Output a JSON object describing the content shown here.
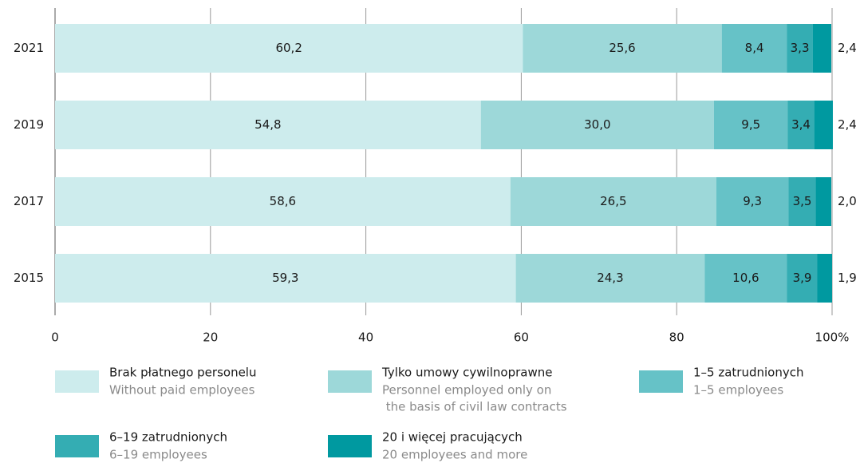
{
  "chart_data": {
    "type": "stacked_barh",
    "categories": [
      "2021",
      "2019",
      "2017",
      "2015"
    ],
    "series": [
      {
        "name": "Brak płatnego personelu",
        "name_en": [
          "Without paid employees"
        ],
        "color": "#cdeced",
        "label_color": "#1a1a1a",
        "values": [
          60.2,
          54.8,
          58.6,
          59.3
        ],
        "value_labels": [
          "60,2",
          "54,8",
          "58,6",
          "59,3"
        ]
      },
      {
        "name": "Tylko umowy cywilnoprawne",
        "name_en": [
          "Personnel employed only on",
          " the basis of civil law contracts"
        ],
        "color": "#9dd8d9",
        "label_color": "#1a1a1a",
        "values": [
          25.6,
          30.0,
          26.5,
          24.3
        ],
        "value_labels": [
          "25,6",
          "30,0",
          "26,5",
          "24,3"
        ]
      },
      {
        "name": "1–5 zatrudnionych",
        "name_en": [
          "1–5 employees"
        ],
        "color": "#66c2c7",
        "label_color": "#1a1a1a",
        "values": [
          8.4,
          9.5,
          9.3,
          10.6
        ],
        "value_labels": [
          "8,4",
          "9,5",
          "9,3",
          "10,6"
        ]
      },
      {
        "name": "6–19 zatrudnionych",
        "name_en": [
          "6–19 employees"
        ],
        "color": "#34adb3",
        "label_color": "#ffffff",
        "values": [
          3.3,
          3.4,
          3.5,
          3.9
        ],
        "value_labels": [
          "3,3",
          "3,4",
          "3,5",
          "3,9"
        ]
      },
      {
        "name": "20 i więcej pracujących",
        "name_en": [
          "20 employees and more"
        ],
        "color": "#0099a0",
        "label_color": "#1a1a1a",
        "label_position": "outside",
        "values": [
          2.4,
          2.4,
          2.0,
          1.9
        ],
        "value_labels": [
          "2,4",
          "2,4",
          "2,0",
          "1,9"
        ]
      }
    ],
    "xlim": [
      0,
      100
    ],
    "xticks": [
      0,
      20,
      40,
      60,
      80,
      {
        "value": 100,
        "label": "100%"
      }
    ],
    "grid": true
  }
}
